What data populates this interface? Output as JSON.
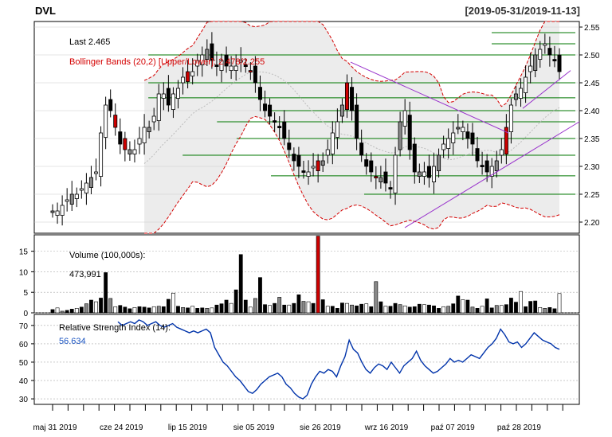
{
  "header": {
    "symbol": "DVL",
    "date_range": "[2019-05-31/2019-11-13]"
  },
  "colors": {
    "background": "#ffffff",
    "band_fill": "#ececec",
    "upper_lower_band": "#d40000",
    "middle_band": "#bbbbbb",
    "support_lines": "#007700",
    "trend_lines": "#9933cc",
    "candle_dark": "#000000",
    "candle_gray": "#888888",
    "candle_red": "#cc0000",
    "rsi_line": "#0033aa",
    "grid": "#aaaaaa"
  },
  "chart_data": [
    {
      "type": "candlestick",
      "panel": "price",
      "annotations": {
        "last": "Last 2.465",
        "bollinger": "Bollinger Bands (20,2) [Upper/Lower]: 2.478/2.255"
      },
      "ylim": [
        2.18,
        2.56
      ],
      "yticks": [
        "2.20",
        "2.25",
        "2.30",
        "2.35",
        "2.40",
        "2.45",
        "2.50",
        "2.55"
      ],
      "x_labels": [
        "maj 31 2019",
        "cze 24 2019",
        "lip 15 2019",
        "sie 05 2019",
        "sie 26 2019",
        "wrz 16 2019",
        "paź 07 2019",
        "paź 28 2019"
      ],
      "close": [
        2.22,
        2.22,
        2.23,
        2.24,
        2.25,
        2.25,
        2.26,
        2.27,
        2.28,
        2.29,
        2.36,
        2.41,
        2.4,
        2.37,
        2.34,
        2.33,
        2.33,
        2.33,
        2.35,
        2.37,
        2.37,
        2.39,
        2.43,
        2.43,
        2.41,
        2.43,
        2.44,
        2.46,
        2.47,
        2.47,
        2.49,
        2.5,
        2.51,
        2.49,
        2.48,
        2.49,
        2.48,
        2.48,
        2.48,
        2.49,
        2.48,
        2.47,
        2.45,
        2.42,
        2.4,
        2.39,
        2.38,
        2.37,
        2.35,
        2.33,
        2.31,
        2.3,
        2.29,
        2.29,
        2.3,
        2.31,
        2.31,
        2.33,
        2.36,
        2.38,
        2.41,
        2.45,
        2.4,
        2.35,
        2.32,
        2.3,
        2.29,
        2.28,
        2.28,
        2.27,
        2.26,
        2.32,
        2.38,
        2.4,
        2.33,
        2.29,
        2.29,
        2.29,
        2.28,
        2.3,
        2.32,
        2.34,
        2.35,
        2.36,
        2.37,
        2.37,
        2.35,
        2.34,
        2.31,
        2.3,
        2.29,
        2.3,
        2.31,
        2.33,
        2.37,
        2.41,
        2.43,
        2.44,
        2.46,
        2.48,
        2.5,
        2.51,
        2.52,
        2.5,
        2.49,
        2.47
      ],
      "up_down_note": "",
      "bollinger_upper_start": 2.42,
      "horizontal_levels": [
        2.25,
        2.283,
        2.32,
        2.35,
        2.38,
        2.4,
        2.423,
        2.45,
        2.5,
        2.52,
        2.54
      ],
      "trend_lines": [
        {
          "from": [
            2.487,
            "sie 26 2019"
          ],
          "to": [
            2.36,
            "paź 07 2019"
          ]
        },
        {
          "from": [
            2.19,
            "wrz 16 2019"
          ],
          "to": [
            2.38,
            "paź 28 2019"
          ]
        },
        {
          "from": [
            2.404,
            "paź 28 2019"
          ],
          "to": [
            2.472,
            "paź 28 2019"
          ]
        }
      ]
    },
    {
      "type": "bar",
      "panel": "volume",
      "title": "Volume (100,000s):",
      "last_value": "473,991",
      "ylim": [
        0,
        19
      ],
      "yticks": [
        "0",
        "5",
        "10",
        "15"
      ],
      "values": [
        0.8,
        1.2,
        0.4,
        0.6,
        0.9,
        1.1,
        1.4,
        2.2,
        3.1,
        2.7,
        3.6,
        9.8,
        3.5,
        1.5,
        1.8,
        1.4,
        1.0,
        1.3,
        1.5,
        1.4,
        1.2,
        1.5,
        1.6,
        1.5,
        3.3,
        4.8,
        1.6,
        1.3,
        1.2,
        1.6,
        1.1,
        1.2,
        1.1,
        1.2,
        1.9,
        2.2,
        3.1,
        2.3,
        5.6,
        14.2,
        3.1,
        1.4,
        3.5,
        8.6,
        2.0,
        1.8,
        2.3,
        3.8,
        1.9,
        1.9,
        2.3,
        4.4,
        2.8,
        2.7,
        2.3,
        18.7,
        3.2,
        1.6,
        1.6,
        1.1,
        2.4,
        2.3,
        1.9,
        1.7,
        2.1,
        2.2,
        1.5,
        7.6,
        2.7,
        1.6,
        1.6,
        2.3,
        2.0,
        1.7,
        1.4,
        1.5,
        2.1,
        2.0,
        1.9,
        1.7,
        1.1,
        1.5,
        1.6,
        2.2,
        4.1,
        3.2,
        3.1,
        1.4,
        1.1,
        1.6,
        3.4,
        1.2,
        1.8,
        1.8,
        2.0,
        3.6,
        2.6,
        5.2,
        1.5,
        2.8,
        2.9,
        1.3,
        1.1,
        1.3,
        1.0,
        4.7
      ],
      "highlight": [
        {
          "index": 55,
          "color": "#cc0000"
        }
      ]
    },
    {
      "type": "line",
      "panel": "rsi",
      "title": "Relative Strength Index (14):",
      "last_value": "56.634",
      "ylim": [
        27,
        76
      ],
      "yticks": [
        "30",
        "40",
        "50",
        "60",
        "70"
      ],
      "values": [
        72,
        70,
        71,
        72,
        71,
        73,
        72,
        70,
        71,
        72,
        70,
        69,
        70,
        71,
        69,
        68,
        67,
        66,
        67,
        66,
        67,
        68,
        66,
        58,
        54,
        50,
        48,
        45,
        42,
        40,
        37,
        34,
        33,
        35,
        38,
        40,
        42,
        43,
        44,
        42,
        38,
        36,
        33,
        31,
        30,
        32,
        38,
        42,
        45,
        44,
        46,
        45,
        42,
        48,
        53,
        62,
        57,
        55,
        50,
        46,
        44,
        47,
        49,
        48,
        46,
        50,
        47,
        44,
        48,
        50,
        52,
        56,
        51,
        48,
        46,
        44,
        45,
        47,
        49,
        52,
        50,
        51,
        50,
        52,
        54,
        53,
        52,
        55,
        58,
        60,
        63,
        68,
        65,
        61,
        60,
        61,
        58,
        60,
        63,
        66,
        64,
        62,
        61,
        60,
        58,
        57
      ]
    }
  ]
}
